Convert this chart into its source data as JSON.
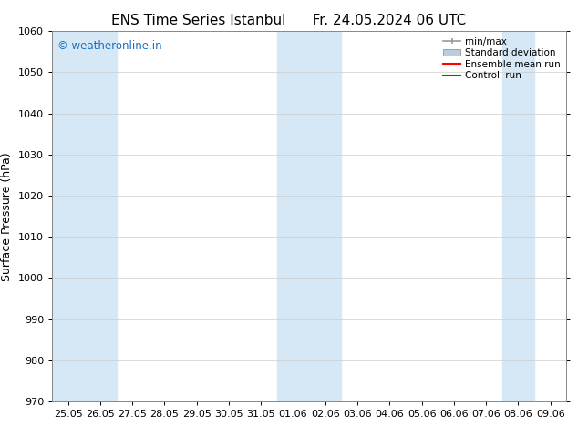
{
  "title_left": "ENS Time Series Istanbul",
  "title_right": "Fr. 24.05.2024 06 UTC",
  "ylabel": "Surface Pressure (hPa)",
  "ylim": [
    970,
    1060
  ],
  "yticks": [
    970,
    980,
    990,
    1000,
    1010,
    1020,
    1030,
    1040,
    1050,
    1060
  ],
  "xtick_labels": [
    "25.05",
    "26.05",
    "27.05",
    "28.05",
    "29.05",
    "30.05",
    "31.05",
    "01.06",
    "02.06",
    "03.06",
    "04.06",
    "05.06",
    "06.06",
    "07.06",
    "08.06",
    "09.06"
  ],
  "band_indices": [
    0,
    1,
    7,
    8,
    14
  ],
  "band_color": "#d6e8f5",
  "copyright_text": "© weatheronline.in",
  "copyright_color": "#1a6dbf",
  "legend_labels": [
    "min/max",
    "Standard deviation",
    "Ensemble mean run",
    "Controll run"
  ],
  "legend_line_colors": [
    "#999999",
    "#bbccdd",
    "#ff0000",
    "#008000"
  ],
  "background_color": "#ffffff",
  "title_fontsize": 11,
  "axis_fontsize": 8,
  "ylabel_fontsize": 9
}
